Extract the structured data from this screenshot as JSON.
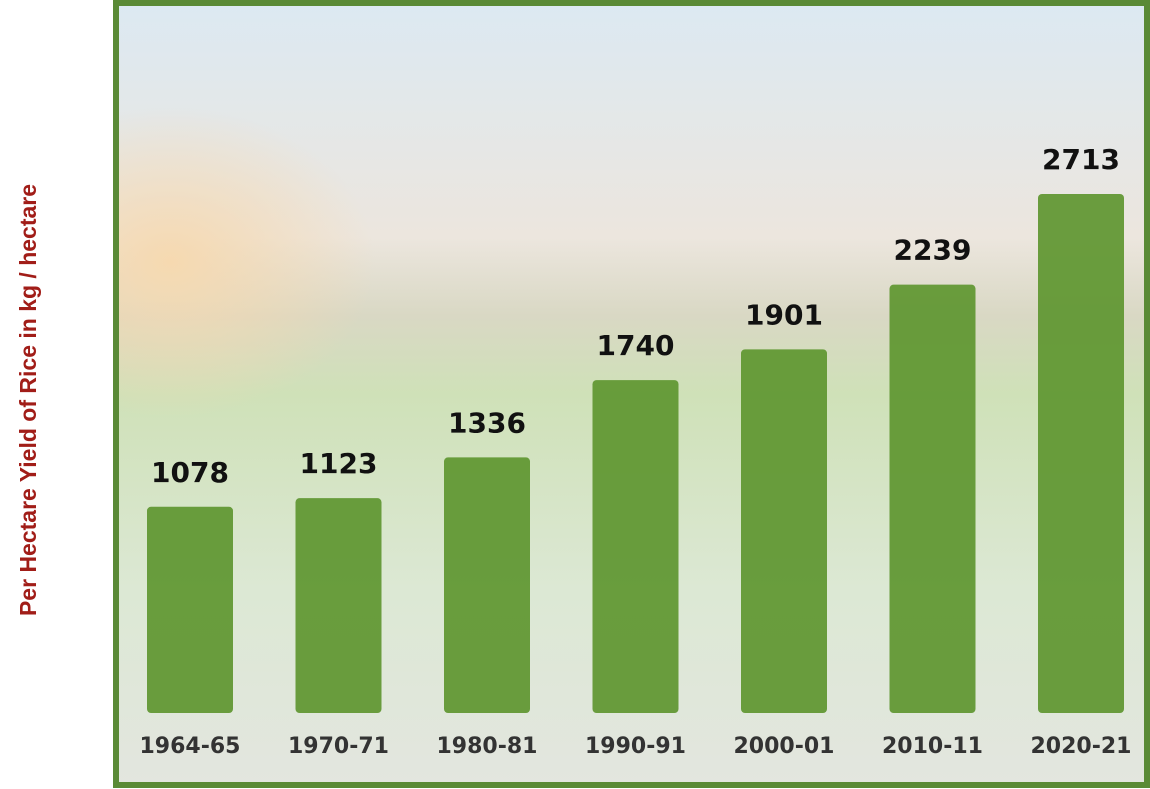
{
  "chart_data": {
    "type": "bar",
    "ylabel": "Per Hectare Yield of Rice in kg / hectare",
    "categories": [
      "1964-65",
      "1970-71",
      "1980-81",
      "1990-91",
      "2000-01",
      "2010-11",
      "2020-21"
    ],
    "values": [
      1078,
      1123,
      1336,
      1740,
      1901,
      2239,
      2713
    ],
    "color": "#5e9630"
  }
}
